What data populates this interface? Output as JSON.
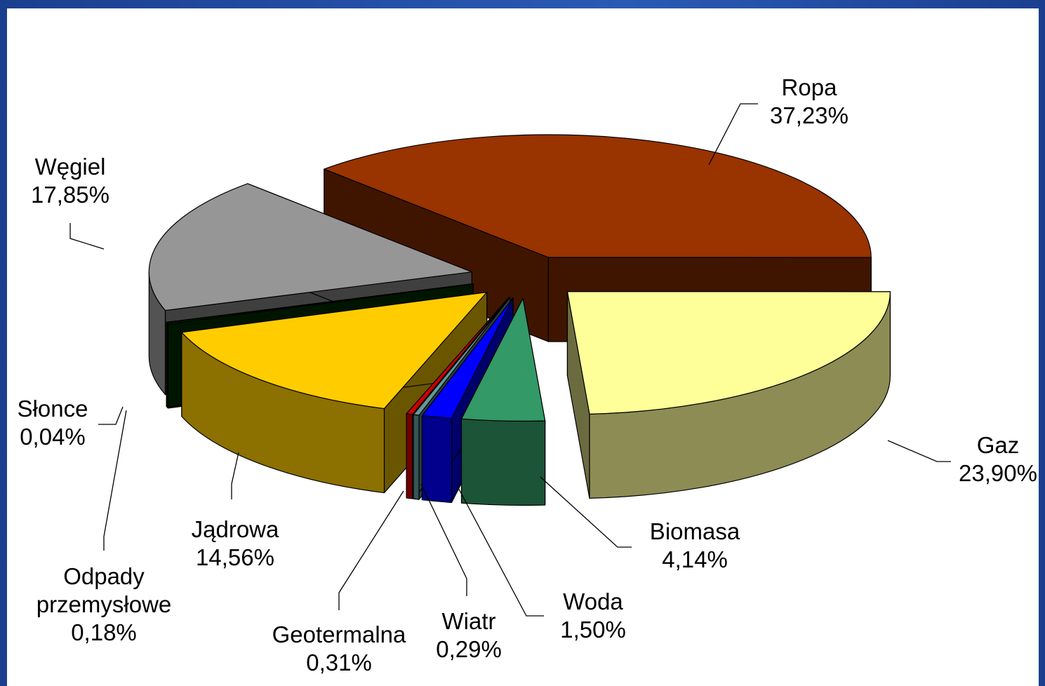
{
  "chart_data": {
    "type": "pie3d",
    "categories": [
      "Ropa",
      "Gaz",
      "Biomasa",
      "Woda",
      "Wiatr",
      "Geotermalna",
      "Jądrowa",
      "Odpady przemysłowe",
      "Słonce",
      "Węgiel"
    ],
    "values": [
      37.23,
      23.9,
      4.14,
      1.5,
      0.29,
      0.31,
      14.56,
      0.18,
      0.04,
      17.85
    ],
    "value_labels": [
      "37,23%",
      "23,90%",
      "4,14%",
      "1,50%",
      "0,29%",
      "0,31%",
      "14,56%",
      "0,18%",
      "0,04%",
      "17,85%"
    ],
    "colors": [
      "#993300",
      "#ffff99",
      "#339966",
      "#0000ff",
      "#669999",
      "#cc0000",
      "#ffcc00",
      "#003300",
      "#111111",
      "#969696"
    ]
  }
}
